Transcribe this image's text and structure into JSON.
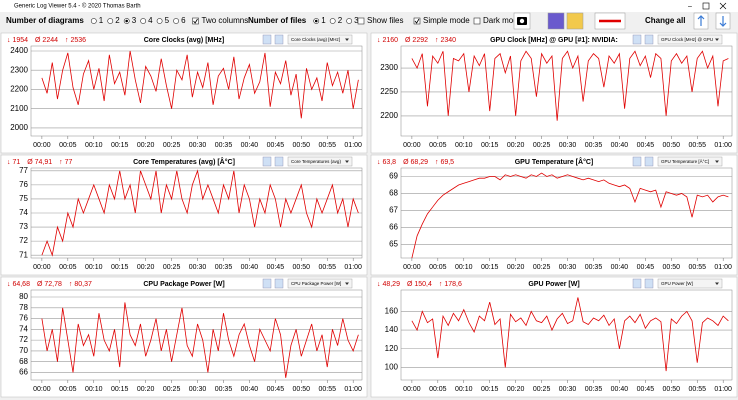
{
  "window_title": "Generic Log Viewer 5.4 - © 2020 Thomas Barth",
  "toolbar": {
    "diagrams_label": "Number of diagrams",
    "diagram_options": [
      "1",
      "2",
      "3",
      "4",
      "5",
      "6"
    ],
    "two_columns": "Two columns",
    "files_label": "Number of files",
    "file_options": [
      "1",
      "2",
      "3"
    ],
    "show_files": "Show files",
    "simple_mode": "Simple mode",
    "dark_mode": "Dark mod",
    "change_all": "Change all"
  },
  "chart_data": [
    {
      "type": "line",
      "title": "Core Clocks (avg) [MHz]",
      "selector": "Core Clocks (avg) [MHz]",
      "stats": [
        "↓ 1954",
        "Ø 2244",
        "↑ 2536"
      ],
      "color": "#e00000",
      "x": [
        0,
        1,
        2,
        3,
        4,
        5,
        6,
        7,
        8,
        9,
        10,
        11,
        12,
        13,
        14,
        15,
        16,
        17,
        18,
        19,
        20,
        21,
        22,
        23,
        24,
        25,
        26,
        27,
        28,
        29,
        30,
        31,
        32,
        33,
        34,
        35,
        36,
        37,
        38,
        39,
        40,
        41,
        42,
        43,
        44,
        45,
        46,
        47,
        48,
        49,
        50,
        51,
        52,
        53,
        54,
        55,
        56,
        57,
        58,
        59,
        60,
        61
      ],
      "values": [
        2260,
        2180,
        2340,
        2150,
        2300,
        2390,
        2210,
        2120,
        2280,
        2350,
        2200,
        2310,
        2140,
        2380,
        2230,
        2290,
        2170,
        2400,
        2250,
        2130,
        2320,
        2270,
        2190,
        2360,
        2220,
        2100,
        2300,
        2250,
        2380,
        2160,
        2290,
        2210,
        2340,
        2120,
        2270,
        2310,
        2200,
        2370,
        2150,
        2260,
        2330,
        2180,
        2240,
        2390,
        2110,
        2290,
        2230,
        2350,
        2170,
        2280,
        2050,
        2310,
        2200,
        2260,
        2140,
        2340,
        2220,
        2290,
        2180,
        2300,
        2100,
        2250
      ],
      "xlim": [
        -2.1,
        61.7
      ],
      "xticks": [
        {
          "value": 0,
          "label": "00:00"
        },
        {
          "value": 5,
          "label": "00:05"
        },
        {
          "value": 10,
          "label": "00:10"
        },
        {
          "value": 15,
          "label": "00:15"
        },
        {
          "value": 20,
          "label": "00:20"
        },
        {
          "value": 25,
          "label": "00:25"
        },
        {
          "value": 30,
          "label": "00:30"
        },
        {
          "value": 35,
          "label": "00:35"
        },
        {
          "value": 40,
          "label": "00:40"
        },
        {
          "value": 45,
          "label": "00:45"
        },
        {
          "value": 50,
          "label": "00:50"
        },
        {
          "value": 55,
          "label": "00:55"
        },
        {
          "value": 60,
          "label": "01:00"
        }
      ],
      "ylim": [
        1958,
        2426
      ],
      "yticks": [
        2000,
        2100,
        2200,
        2300,
        2400
      ],
      "grid": true
    },
    {
      "type": "line",
      "title": "GPU Clock [MHz] @ GPU [#1]: NVIDIA:",
      "selector": "GPU Clock [MHz] @ GPU",
      "stats": [
        "↓ 2160",
        "Ø 2292",
        "↑ 2340"
      ],
      "color": "#e00000",
      "x": [
        0,
        1,
        2,
        3,
        4,
        5,
        6,
        7,
        8,
        9,
        10,
        11,
        12,
        13,
        14,
        15,
        16,
        17,
        18,
        19,
        20,
        21,
        22,
        23,
        24,
        25,
        26,
        27,
        28,
        29,
        30,
        31,
        32,
        33,
        34,
        35,
        36,
        37,
        38,
        39,
        40,
        41,
        42,
        43,
        44,
        45,
        46,
        47,
        48,
        49,
        50,
        51,
        52,
        53,
        54,
        55,
        56,
        57,
        58,
        59,
        60,
        61
      ],
      "values": [
        2320,
        2300,
        2330,
        2220,
        2325,
        2310,
        2335,
        2200,
        2320,
        2315,
        2330,
        2250,
        2325,
        2305,
        2330,
        2210,
        2320,
        2330,
        2290,
        2325,
        2200,
        2315,
        2335,
        2320,
        2240,
        2330,
        2310,
        2325,
        2190,
        2320,
        2335,
        2300,
        2325,
        2230,
        2315,
        2330,
        2320,
        2260,
        2325,
        2310,
        2330,
        2215,
        2320,
        2335,
        2305,
        2325,
        2280,
        2330,
        2320,
        2200,
        2315,
        2330,
        2310,
        2325,
        2250,
        2320,
        2335,
        2300,
        2325,
        2220,
        2315,
        2320
      ],
      "xlim": [
        -2.1,
        61.7
      ],
      "xticks": [
        {
          "value": 0,
          "label": "00:00"
        },
        {
          "value": 5,
          "label": "00:05"
        },
        {
          "value": 10,
          "label": "00:10"
        },
        {
          "value": 15,
          "label": "00:15"
        },
        {
          "value": 20,
          "label": "00:20"
        },
        {
          "value": 25,
          "label": "00:25"
        },
        {
          "value": 30,
          "label": "00:30"
        },
        {
          "value": 35,
          "label": "00:35"
        },
        {
          "value": 40,
          "label": "00:40"
        },
        {
          "value": 45,
          "label": "00:45"
        },
        {
          "value": 50,
          "label": "00:50"
        },
        {
          "value": 55,
          "label": "00:55"
        },
        {
          "value": 60,
          "label": "01:00"
        }
      ],
      "ylim": [
        2158,
        2346
      ],
      "yticks": [
        2200,
        2250,
        2300
      ],
      "grid": true
    },
    {
      "type": "line",
      "title": "Core Temperatures (avg) [Â°C]",
      "selector": "Core Temperatures (avg)",
      "stats": [
        "↓ 71",
        "Ø 74,91",
        "↑ 77"
      ],
      "color": "#e00000",
      "x": [
        0,
        1,
        2,
        3,
        4,
        5,
        6,
        7,
        8,
        9,
        10,
        11,
        12,
        13,
        14,
        15,
        16,
        17,
        18,
        19,
        20,
        21,
        22,
        23,
        24,
        25,
        26,
        27,
        28,
        29,
        30,
        31,
        32,
        33,
        34,
        35,
        36,
        37,
        38,
        39,
        40,
        41,
        42,
        43,
        44,
        45,
        46,
        47,
        48,
        49,
        50,
        51,
        52,
        53,
        54,
        55,
        56,
        57,
        58,
        59,
        60,
        61
      ],
      "values": [
        71,
        72,
        71,
        73,
        72,
        74,
        73,
        75,
        74,
        75,
        76,
        75,
        74,
        76,
        75,
        77,
        75,
        76,
        74,
        77,
        76,
        75,
        77,
        74,
        76,
        75,
        77,
        75,
        74,
        76,
        77,
        75,
        76,
        75,
        74,
        76,
        75,
        77,
        74,
        76,
        75,
        73,
        75,
        74,
        76,
        75,
        73,
        75,
        74,
        75,
        76,
        74,
        73,
        75,
        74,
        75,
        76,
        74,
        75,
        73,
        75,
        74
      ],
      "xlim": [
        -2.1,
        61.7
      ],
      "xticks": [
        {
          "value": 0,
          "label": "00:00"
        },
        {
          "value": 5,
          "label": "00:05"
        },
        {
          "value": 10,
          "label": "00:10"
        },
        {
          "value": 15,
          "label": "00:15"
        },
        {
          "value": 20,
          "label": "00:20"
        },
        {
          "value": 25,
          "label": "00:25"
        },
        {
          "value": 30,
          "label": "00:30"
        },
        {
          "value": 35,
          "label": "00:35"
        },
        {
          "value": 40,
          "label": "00:40"
        },
        {
          "value": 45,
          "label": "00:45"
        },
        {
          "value": 50,
          "label": "00:50"
        },
        {
          "value": 55,
          "label": "00:55"
        },
        {
          "value": 60,
          "label": "01:00"
        }
      ],
      "ylim": [
        70.8,
        77.2
      ],
      "yticks": [
        71,
        72,
        73,
        74,
        75,
        76,
        77
      ],
      "grid": true
    },
    {
      "type": "line",
      "title": "GPU Temperature [Â°C]",
      "selector": "GPU Temperature [Â°C]",
      "stats": [
        "↓ 63,8",
        "Ø 68,29",
        "↑ 69,5"
      ],
      "color": "#e00000",
      "x": [
        0,
        1,
        2,
        3,
        4,
        5,
        6,
        7,
        8,
        9,
        10,
        11,
        12,
        13,
        14,
        15,
        16,
        17,
        18,
        19,
        20,
        21,
        22,
        23,
        24,
        25,
        26,
        27,
        28,
        29,
        30,
        31,
        32,
        33,
        34,
        35,
        36,
        37,
        38,
        39,
        40,
        41,
        42,
        43,
        44,
        45,
        46,
        47,
        48,
        49,
        50,
        51,
        52,
        53,
        54,
        55,
        56,
        57,
        58,
        59,
        60,
        61
      ],
      "values": [
        64.2,
        65.5,
        66.2,
        66.8,
        67.2,
        67.6,
        67.9,
        68.1,
        68.3,
        68.5,
        68.6,
        68.7,
        68.8,
        68.9,
        68.9,
        69,
        69,
        68.8,
        69.1,
        69,
        69.1,
        69,
        68.9,
        69.1,
        69,
        69.2,
        69,
        69.1,
        68.9,
        69,
        69.1,
        69,
        68.9,
        68.8,
        68.9,
        68.8,
        68.7,
        68.8,
        68.6,
        68.5,
        68.4,
        68.5,
        68.3,
        67.5,
        68.3,
        68.2,
        68.1,
        68.2,
        67.2,
        68.1,
        68,
        67.9,
        68,
        67.8,
        66.6,
        67.9,
        67.8,
        67.9,
        67.5,
        67.8,
        67.9,
        67.8
      ],
      "xlim": [
        -2.1,
        61.7
      ],
      "xticks": [
        {
          "value": 0,
          "label": "00:00"
        },
        {
          "value": 5,
          "label": "00:05"
        },
        {
          "value": 10,
          "label": "00:10"
        },
        {
          "value": 15,
          "label": "00:15"
        },
        {
          "value": 20,
          "label": "00:20"
        },
        {
          "value": 25,
          "label": "00:25"
        },
        {
          "value": 30,
          "label": "00:30"
        },
        {
          "value": 35,
          "label": "00:35"
        },
        {
          "value": 40,
          "label": "00:40"
        },
        {
          "value": 45,
          "label": "00:45"
        },
        {
          "value": 50,
          "label": "00:50"
        },
        {
          "value": 55,
          "label": "00:55"
        },
        {
          "value": 60,
          "label": "01:00"
        }
      ],
      "ylim": [
        64.2,
        69.5
      ],
      "yticks": [
        65,
        66,
        67,
        68,
        69
      ],
      "grid": true
    },
    {
      "type": "line",
      "title": "CPU Package Power [W]",
      "selector": "CPU Package Power [W]",
      "stats": [
        "↓ 64,68",
        "Ø 72,78",
        "↑ 80,37"
      ],
      "color": "#e00000",
      "x": [
        0,
        1,
        2,
        3,
        4,
        5,
        6,
        7,
        8,
        9,
        10,
        11,
        12,
        13,
        14,
        15,
        16,
        17,
        18,
        19,
        20,
        21,
        22,
        23,
        24,
        25,
        26,
        27,
        28,
        29,
        30,
        31,
        32,
        33,
        34,
        35,
        36,
        37,
        38,
        39,
        40,
        41,
        42,
        43,
        44,
        45,
        46,
        47,
        48,
        49,
        50,
        51,
        52,
        53,
        54,
        55,
        56,
        57,
        58,
        59,
        60,
        61
      ],
      "values": [
        76,
        70,
        74,
        68,
        78,
        72,
        66,
        75,
        71,
        73,
        69,
        77,
        72,
        70,
        74,
        67,
        79,
        73,
        71,
        75,
        69,
        72,
        76,
        70,
        74,
        68,
        73,
        78,
        71,
        69,
        75,
        72,
        66,
        74,
        70,
        77,
        72,
        69,
        73,
        75,
        71,
        68,
        74,
        72,
        70,
        76,
        73,
        65,
        71,
        74,
        69,
        72,
        75,
        70,
        73,
        67,
        74,
        71,
        76,
        72,
        70,
        73
      ],
      "xlim": [
        -2.1,
        61.7
      ],
      "xticks": [
        {
          "value": 0,
          "label": "00:00"
        },
        {
          "value": 5,
          "label": "00:05"
        },
        {
          "value": 10,
          "label": "00:10"
        },
        {
          "value": 15,
          "label": "00:15"
        },
        {
          "value": 20,
          "label": "00:20"
        },
        {
          "value": 25,
          "label": "00:25"
        },
        {
          "value": 30,
          "label": "00:30"
        },
        {
          "value": 35,
          "label": "00:35"
        },
        {
          "value": 40,
          "label": "00:40"
        },
        {
          "value": 45,
          "label": "00:45"
        },
        {
          "value": 50,
          "label": "00:50"
        },
        {
          "value": 55,
          "label": "00:55"
        },
        {
          "value": 60,
          "label": "01:00"
        }
      ],
      "ylim": [
        64.6,
        81.3
      ],
      "yticks": [
        66,
        68,
        70,
        72,
        74,
        76,
        78,
        80
      ],
      "grid": true
    },
    {
      "type": "line",
      "title": "GPU Power [W]",
      "selector": "GPU Power [W]",
      "stats": [
        "↓ 48,29",
        "Ø 150,4",
        "↑ 178,6"
      ],
      "color": "#e00000",
      "x": [
        0,
        1,
        2,
        3,
        4,
        5,
        6,
        7,
        8,
        9,
        10,
        11,
        12,
        13,
        14,
        15,
        16,
        17,
        18,
        19,
        20,
        21,
        22,
        23,
        24,
        25,
        26,
        27,
        28,
        29,
        30,
        31,
        32,
        33,
        34,
        35,
        36,
        37,
        38,
        39,
        40,
        41,
        42,
        43,
        44,
        45,
        46,
        47,
        48,
        49,
        50,
        51,
        52,
        53,
        54,
        55,
        56,
        57,
        58,
        59,
        60,
        61
      ],
      "values": [
        150,
        140,
        160,
        148,
        152,
        110,
        155,
        145,
        158,
        150,
        162,
        148,
        138,
        155,
        150,
        170,
        146,
        152,
        100,
        157,
        149,
        153,
        145,
        160,
        150,
        148,
        155,
        140,
        152,
        158,
        147,
        150,
        175,
        149,
        146,
        153,
        150,
        156,
        145,
        152,
        120,
        150,
        155,
        148,
        157,
        142,
        150,
        153,
        149,
        96,
        152,
        147,
        155,
        160,
        150,
        105,
        148,
        153,
        150,
        145,
        155,
        150
      ],
      "xlim": [
        -2.1,
        61.7
      ],
      "xticks": [
        {
          "value": 0,
          "label": "00:00"
        },
        {
          "value": 5,
          "label": "00:05"
        },
        {
          "value": 10,
          "label": "00:10"
        },
        {
          "value": 15,
          "label": "00:15"
        },
        {
          "value": 20,
          "label": "00:20"
        },
        {
          "value": 25,
          "label": "00:25"
        },
        {
          "value": 30,
          "label": "00:30"
        },
        {
          "value": 35,
          "label": "00:35"
        },
        {
          "value": 40,
          "label": "00:40"
        },
        {
          "value": 45,
          "label": "00:45"
        },
        {
          "value": 50,
          "label": "00:50"
        },
        {
          "value": 55,
          "label": "00:55"
        },
        {
          "value": 60,
          "label": "01:00"
        }
      ],
      "ylim": [
        86.5,
        183
      ],
      "yticks": [
        100,
        120,
        140,
        160
      ],
      "grid": true
    }
  ]
}
